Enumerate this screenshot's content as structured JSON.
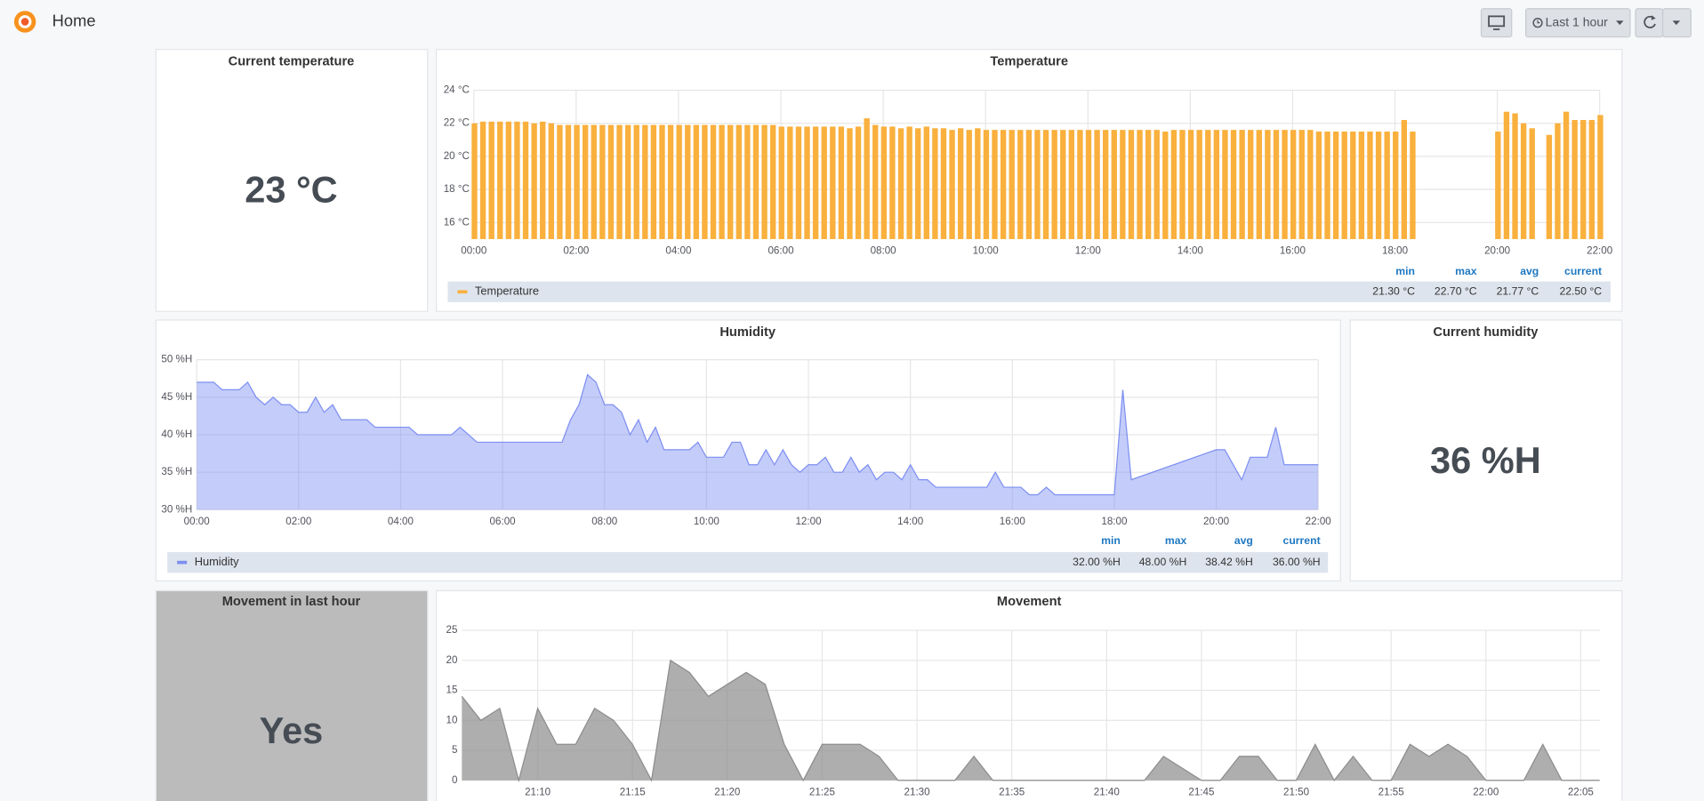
{
  "header": {
    "title": "Home",
    "time_range": "Last 1 hour"
  },
  "stats": [
    {
      "title": "Current temperature",
      "value": "23 °C"
    },
    {
      "title": "Current humidity",
      "value": "36 %H"
    },
    {
      "title": "Movement in last hour",
      "value": "Yes"
    }
  ],
  "chart_data": [
    {
      "type": "bar",
      "title": "Temperature",
      "x": [
        "00:00",
        "00:10",
        "00:20",
        "00:30",
        "00:40",
        "00:50",
        "01:00",
        "01:10",
        "01:20",
        "01:30",
        "01:40",
        "01:50",
        "02:00",
        "02:10",
        "02:20",
        "02:30",
        "02:40",
        "02:50",
        "03:00",
        "03:10",
        "03:20",
        "03:30",
        "03:40",
        "03:50",
        "04:00",
        "04:10",
        "04:20",
        "04:30",
        "04:40",
        "04:50",
        "05:00",
        "05:10",
        "05:20",
        "05:30",
        "05:40",
        "05:50",
        "06:00",
        "06:10",
        "06:20",
        "06:30",
        "06:40",
        "06:50",
        "07:00",
        "07:10",
        "07:20",
        "07:30",
        "07:40",
        "07:50",
        "08:00",
        "08:10",
        "08:20",
        "08:30",
        "08:40",
        "08:50",
        "09:00",
        "09:10",
        "09:20",
        "09:30",
        "09:40",
        "09:50",
        "10:00",
        "10:10",
        "10:20",
        "10:30",
        "10:40",
        "10:50",
        "11:00",
        "11:10",
        "11:20",
        "11:30",
        "11:40",
        "11:50",
        "12:00",
        "12:10",
        "12:20",
        "12:30",
        "12:40",
        "12:50",
        "13:00",
        "13:10",
        "13:20",
        "13:30",
        "13:40",
        "13:50",
        "14:00",
        "14:10",
        "14:20",
        "14:30",
        "14:40",
        "14:50",
        "15:00",
        "15:10",
        "15:20",
        "15:30",
        "15:40",
        "15:50",
        "16:00",
        "16:10",
        "16:20",
        "16:30",
        "16:40",
        "16:50",
        "17:00",
        "17:10",
        "17:20",
        "17:30",
        "17:40",
        "17:50",
        "18:00",
        "18:10",
        "18:20",
        "20:00",
        "20:10",
        "20:20",
        "20:30",
        "20:40",
        "21:00",
        "21:10",
        "21:20",
        "21:30",
        "21:40",
        "21:50",
        "22:00"
      ],
      "series": [
        {
          "name": "Temperature",
          "color": "#f9b03d",
          "values": [
            22.0,
            22.1,
            22.1,
            22.1,
            22.1,
            22.1,
            22.1,
            22.0,
            22.1,
            22.0,
            21.9,
            21.9,
            21.9,
            21.9,
            21.9,
            21.9,
            21.9,
            21.9,
            21.9,
            21.9,
            21.9,
            21.9,
            21.9,
            21.9,
            21.9,
            21.9,
            21.9,
            21.9,
            21.9,
            21.9,
            21.9,
            21.9,
            21.9,
            21.9,
            21.9,
            21.9,
            21.8,
            21.8,
            21.8,
            21.8,
            21.8,
            21.8,
            21.8,
            21.8,
            21.7,
            21.8,
            22.3,
            21.9,
            21.8,
            21.8,
            21.7,
            21.8,
            21.7,
            21.8,
            21.7,
            21.7,
            21.6,
            21.7,
            21.6,
            21.7,
            21.6,
            21.6,
            21.6,
            21.6,
            21.6,
            21.6,
            21.6,
            21.6,
            21.6,
            21.6,
            21.6,
            21.6,
            21.6,
            21.6,
            21.6,
            21.6,
            21.6,
            21.6,
            21.6,
            21.6,
            21.6,
            21.5,
            21.6,
            21.6,
            21.6,
            21.6,
            21.6,
            21.6,
            21.6,
            21.6,
            21.6,
            21.6,
            21.6,
            21.6,
            21.6,
            21.6,
            21.6,
            21.6,
            21.6,
            21.5,
            21.5,
            21.5,
            21.5,
            21.5,
            21.5,
            21.5,
            21.5,
            21.5,
            21.5,
            22.2,
            21.5,
            21.5,
            22.7,
            22.6,
            22.0,
            21.7,
            21.3,
            22.0,
            22.7,
            22.2,
            22.2,
            22.2,
            22.5
          ],
          "legend_values": [
            "21.30 °C",
            "22.70 °C",
            "21.77 °C",
            "22.50 °C"
          ]
        }
      ],
      "legend_columns": [
        "min",
        "max",
        "avg",
        "current"
      ],
      "xlim": [
        "00:00",
        "22:00"
      ],
      "xticks": [
        "00:00",
        "02:00",
        "04:00",
        "06:00",
        "08:00",
        "10:00",
        "12:00",
        "14:00",
        "16:00",
        "18:00",
        "20:00",
        "22:00"
      ],
      "ylim": [
        15,
        24
      ],
      "yticks": [
        {
          "value": 16,
          "label": "16 °C"
        },
        {
          "value": 18,
          "label": "18 °C"
        },
        {
          "value": 20,
          "label": "20 °C"
        },
        {
          "value": 22,
          "label": "22 °C"
        },
        {
          "value": 24,
          "label": "24 °C"
        }
      ],
      "grid": true
    },
    {
      "type": "area",
      "title": "Humidity",
      "x": [
        "00:00",
        "00:20",
        "00:30",
        "00:50",
        "01:00",
        "01:10",
        "01:20",
        "01:30",
        "01:40",
        "01:50",
        "02:00",
        "02:10",
        "02:20",
        "02:30",
        "02:40",
        "02:50",
        "03:20",
        "03:30",
        "04:10",
        "04:20",
        "05:00",
        "05:10",
        "05:30",
        "07:10",
        "07:20",
        "07:30",
        "07:40",
        "07:50",
        "08:00",
        "08:10",
        "08:20",
        "08:30",
        "08:40",
        "08:50",
        "09:00",
        "09:10",
        "09:40",
        "09:50",
        "10:00",
        "10:20",
        "10:30",
        "10:40",
        "10:50",
        "11:00",
        "11:10",
        "11:20",
        "11:30",
        "11:40",
        "11:50",
        "12:00",
        "12:10",
        "12:20",
        "12:30",
        "12:40",
        "12:50",
        "13:00",
        "13:10",
        "13:20",
        "13:30",
        "13:40",
        "13:50",
        "14:00",
        "14:10",
        "14:20",
        "14:30",
        "15:30",
        "15:40",
        "15:50",
        "16:10",
        "16:20",
        "16:30",
        "16:40",
        "16:50",
        "18:00",
        "18:10",
        "18:20",
        "20:00",
        "20:10",
        "20:30",
        "20:40",
        "21:00",
        "21:10",
        "21:20",
        "22:00"
      ],
      "series": [
        {
          "name": "Humidity",
          "color": "#7d8ff2",
          "values": [
            47,
            47,
            46,
            46,
            47,
            45,
            44,
            45,
            44,
            44,
            43,
            43,
            45,
            43,
            44,
            42,
            42,
            41,
            41,
            40,
            40,
            41,
            39,
            39,
            42,
            44,
            48,
            47,
            44,
            44,
            43,
            40,
            42,
            39,
            41,
            38,
            38,
            39,
            37,
            37,
            39,
            39,
            36,
            36,
            38,
            36,
            38,
            36,
            35,
            36,
            36,
            37,
            35,
            35,
            37,
            35,
            36,
            34,
            35,
            35,
            34,
            36,
            34,
            34,
            33,
            33,
            35,
            33,
            33,
            32,
            32,
            33,
            32,
            32,
            46,
            34,
            38,
            38,
            34,
            37,
            37,
            41,
            36,
            36
          ],
          "legend_values": [
            "32.00 %H",
            "48.00 %H",
            "38.42 %H",
            "36.00 %H"
          ]
        }
      ],
      "legend_columns": [
        "min",
        "max",
        "avg",
        "current"
      ],
      "xlim": [
        "00:00",
        "22:00"
      ],
      "xticks": [
        "00:00",
        "02:00",
        "04:00",
        "06:00",
        "08:00",
        "10:00",
        "12:00",
        "14:00",
        "16:00",
        "18:00",
        "20:00",
        "22:00"
      ],
      "ylim": [
        30,
        50
      ],
      "yticks": [
        {
          "value": 30,
          "label": "30 %H"
        },
        {
          "value": 35,
          "label": "35 %H"
        },
        {
          "value": 40,
          "label": "40 %H"
        },
        {
          "value": 45,
          "label": "45 %H"
        },
        {
          "value": 50,
          "label": "50 %H"
        }
      ],
      "grid": true
    },
    {
      "type": "area",
      "title": "Movement",
      "x": [
        "21:06",
        "21:07",
        "21:08",
        "21:09",
        "21:10",
        "21:11",
        "21:12",
        "21:13",
        "21:14",
        "21:15",
        "21:16",
        "21:17",
        "21:18",
        "21:19",
        "21:20",
        "21:21",
        "21:22",
        "21:23",
        "21:24",
        "21:25",
        "21:27",
        "21:28",
        "21:29",
        "21:32",
        "21:33",
        "21:34",
        "21:42",
        "21:43",
        "21:45",
        "21:46",
        "21:47",
        "21:48",
        "21:49",
        "21:50",
        "21:51",
        "21:52",
        "21:53",
        "21:54",
        "21:55",
        "21:56",
        "21:57",
        "21:58",
        "21:59",
        "22:00",
        "22:02",
        "22:03",
        "22:04",
        "22:06"
      ],
      "series": [
        {
          "color": "#8c8c8c",
          "values": [
            14,
            10,
            12,
            0,
            12,
            6,
            6,
            12,
            10,
            6,
            0,
            20,
            18,
            14,
            16,
            18,
            16,
            6,
            0,
            6,
            6,
            4,
            0,
            0,
            4,
            0,
            0,
            4,
            0,
            0,
            4,
            4,
            0,
            0,
            6,
            0,
            4,
            0,
            0,
            6,
            4,
            6,
            4,
            0,
            0,
            6,
            0,
            0
          ]
        }
      ],
      "xlim": [
        "21:06",
        "22:06"
      ],
      "xticks": [
        "21:10",
        "21:15",
        "21:20",
        "21:25",
        "21:30",
        "21:35",
        "21:40",
        "21:45",
        "21:50",
        "21:55",
        "22:00",
        "22:05"
      ],
      "ylim": [
        0,
        25
      ],
      "yticks": [
        0,
        5,
        10,
        15,
        20,
        25
      ],
      "grid": true
    }
  ]
}
